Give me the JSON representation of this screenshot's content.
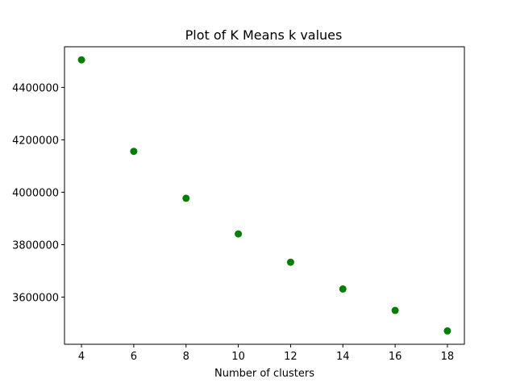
{
  "chart_data": {
    "type": "scatter",
    "title": "Plot of K Means k values",
    "xlabel": "Number of clusters",
    "ylabel": "",
    "x": [
      4,
      6,
      8,
      10,
      12,
      14,
      16,
      18
    ],
    "y": [
      4505000,
      4156000,
      3977000,
      3841000,
      3733000,
      3631000,
      3549000,
      3471000
    ],
    "xlim": [
      3.35,
      18.65
    ],
    "ylim": [
      3420000,
      4555000
    ],
    "xticks": [
      4,
      6,
      8,
      10,
      12,
      14,
      16,
      18
    ],
    "yticks": [
      3600000,
      3800000,
      4000000,
      4200000,
      4400000
    ],
    "marker_color": "#008000",
    "grid": false,
    "legend": "none"
  }
}
